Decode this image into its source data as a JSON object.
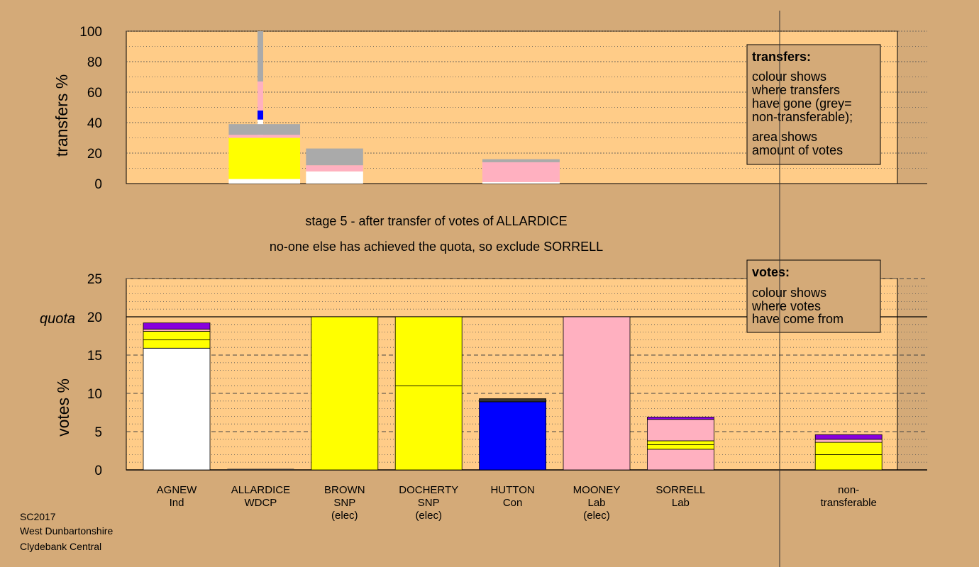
{
  "stage_text": "stage 5 - after transfer of votes of ALLARDICE",
  "status_text": "no-one else has achieved the quota, so exclude SORRELL",
  "footer": [
    "SC2017",
    "West Dunbartonshire",
    "Clydebank Central"
  ],
  "colors": {
    "background": "#d4aa78",
    "plot_bg": "#ffcc88"
  },
  "chart_data": [
    {
      "type": "bar",
      "stacked": true,
      "name": "transfers",
      "ylabel": "transfers %",
      "ylim": [
        0,
        100
      ],
      "yticks": [
        "0",
        "20",
        "40",
        "60",
        "80",
        "100"
      ],
      "legend": {
        "title": "transfers:",
        "lines": [
          "colour shows",
          "where transfers",
          "have gone (grey=",
          "non-transferable);"
        ],
        "lines2": [
          "area shows",
          "amount of votes"
        ]
      },
      "bars": [
        {
          "x0": 0.4,
          "x1": 0.6,
          "segments": [
            {
              "color": "#ffffff",
              "value": 42
            },
            {
              "color": "#0000ff",
              "value": 6
            },
            {
              "color": "#ffb0c0",
              "value": 19
            },
            {
              "color": "#aaaaaa",
              "value": 33
            }
          ]
        },
        {
          "x0": 1.0,
          "x1": 1.85,
          "segments": [
            {
              "color": "#ffffff",
              "value": 3
            },
            {
              "color": "#ffff00",
              "value": 27
            },
            {
              "color": "#ffb0c0",
              "value": 2
            },
            {
              "color": "#aaaaaa",
              "value": 7
            }
          ]
        },
        {
          "x0": 1.92,
          "x1": 2.6,
          "segments": [
            {
              "color": "#ffffff",
              "value": 8
            },
            {
              "color": "#ffb0c0",
              "value": 4
            },
            {
              "color": "#aaaaaa",
              "value": 11
            }
          ]
        },
        {
          "x0": 4.02,
          "x1": 4.94,
          "segments": [
            {
              "color": "#ffffff",
              "value": 1
            },
            {
              "color": "#ffb0c0",
              "value": 13
            },
            {
              "color": "#aaaaaa",
              "value": 2
            }
          ]
        }
      ]
    },
    {
      "type": "bar",
      "stacked": true,
      "name": "votes",
      "ylabel": "votes %",
      "ylim": [
        0,
        25
      ],
      "yticks": [
        "0",
        "5",
        "10",
        "15",
        "20",
        "25"
      ],
      "quota": 20,
      "quota_label": "quota",
      "legend": {
        "title": "votes:",
        "lines": [
          "colour shows",
          "where votes",
          "have come from"
        ]
      },
      "categories": [
        {
          "name": "AGNEW",
          "party": "Ind",
          "note": ""
        },
        {
          "name": "ALLARDICE",
          "party": "WDCP",
          "note": ""
        },
        {
          "name": "BROWN",
          "party": "SNP",
          "note": "(elec)"
        },
        {
          "name": "DOCHERTY",
          "party": "SNP",
          "note": "(elec)"
        },
        {
          "name": "HUTTON",
          "party": "Con",
          "note": ""
        },
        {
          "name": "MOONEY",
          "party": "Lab",
          "note": "(elec)"
        },
        {
          "name": "SORRELL",
          "party": "Lab",
          "note": ""
        },
        {
          "name": "",
          "party": "",
          "note": ""
        },
        {
          "name": "non-",
          "party": "transferable",
          "note": ""
        }
      ],
      "stacks": [
        [
          {
            "color": "#ffffff",
            "value": 15.9
          },
          {
            "color": "#ffff00",
            "value": 1.1
          },
          {
            "color": "#ffff00",
            "value": 1.1
          },
          {
            "color": "#ffb0c0",
            "value": 0.3
          },
          {
            "color": "#8800dd",
            "value": 0.8
          }
        ],
        [],
        [
          {
            "color": "#ffff00",
            "value": 20
          }
        ],
        [
          {
            "color": "#ffff00",
            "value": 11
          },
          {
            "color": "#ffff00",
            "value": 9
          }
        ],
        [
          {
            "color": "#0000ff",
            "value": 8.9
          },
          {
            "color": "#333333",
            "value": 0.4
          }
        ],
        [
          {
            "color": "#ffb0c0",
            "value": 20
          }
        ],
        [
          {
            "color": "#ffb0c0",
            "value": 2.7
          },
          {
            "color": "#ffff00",
            "value": 0.6
          },
          {
            "color": "#ffff00",
            "value": 0.5
          },
          {
            "color": "#ffb0c0",
            "value": 2.8
          },
          {
            "color": "#8800dd",
            "value": 0.3
          }
        ],
        [],
        [
          {
            "color": "#ffff00",
            "value": 2.0
          },
          {
            "color": "#ffff00",
            "value": 1.6
          },
          {
            "color": "#ffb0c0",
            "value": 0.4
          },
          {
            "color": "#8800dd",
            "value": 0.6
          }
        ]
      ]
    }
  ]
}
